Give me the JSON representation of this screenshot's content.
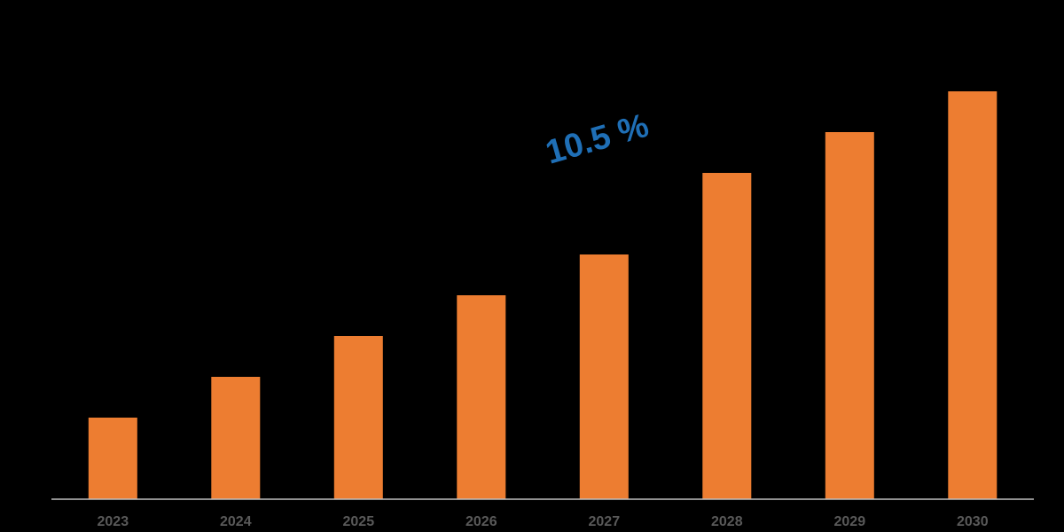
{
  "chart_data": {
    "type": "bar",
    "categories": [
      "2023",
      "2024",
      "2025",
      "2026",
      "2027",
      "2028",
      "2029",
      "2030"
    ],
    "values": [
      1.0,
      1.5,
      2.0,
      2.5,
      3.0,
      4.0,
      4.5,
      5.0
    ],
    "title": "",
    "xlabel": "",
    "ylabel": "",
    "ylim": [
      0,
      5.0
    ],
    "grid": false,
    "legend": "none",
    "annotation": "10.5 %",
    "colors": {
      "background": "#000000",
      "bar": "#ed7d31",
      "axis": "#bfbfbf",
      "tick_label": "#595959",
      "annotation": "#1f6fb6"
    }
  }
}
